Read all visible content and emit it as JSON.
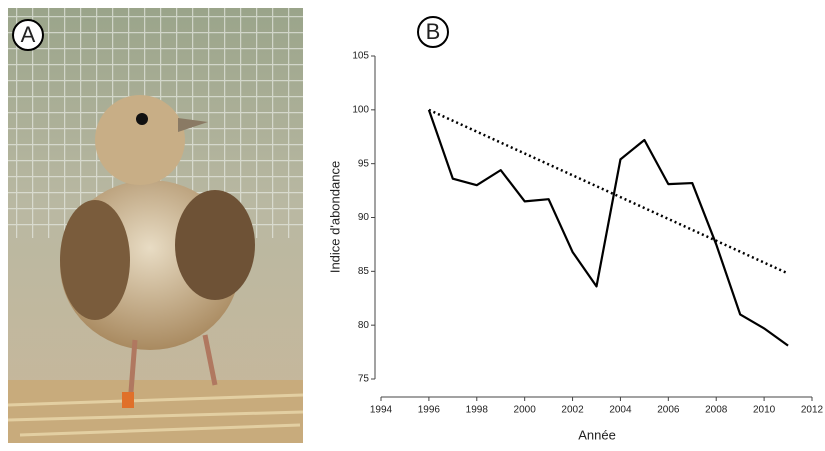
{
  "panel_labels": [
    "A",
    "B"
  ],
  "chart_data": {
    "type": "line",
    "xlabel": "Année",
    "ylabel": "Indice d'abondance",
    "series": [
      {
        "x": [
          1996,
          1997,
          1998,
          1999,
          2000,
          2001,
          2002,
          2003,
          2004,
          2005,
          2006,
          2007,
          2008,
          2009,
          2010,
          2011
        ],
        "values": [
          100,
          93.6,
          93.0,
          94.4,
          91.5,
          91.7,
          86.8,
          83.6,
          95.4,
          97.2,
          93.1,
          93.2,
          87.5,
          81.0,
          79.7,
          78.1
        ],
        "color": "#000000",
        "dash": "solid"
      },
      {
        "x": [
          1996,
          2011
        ],
        "values": [
          100,
          84.8
        ],
        "color": "#000000",
        "dash": "dotted"
      }
    ],
    "xlim": [
      1994,
      2012
    ],
    "xticks": [
      1994,
      1996,
      1998,
      2000,
      2002,
      2004,
      2006,
      2008,
      2010,
      2012
    ],
    "ylim": [
      75,
      105
    ],
    "yticks": [
      75,
      80,
      85,
      90,
      95,
      100,
      105
    ],
    "grid": false
  }
}
